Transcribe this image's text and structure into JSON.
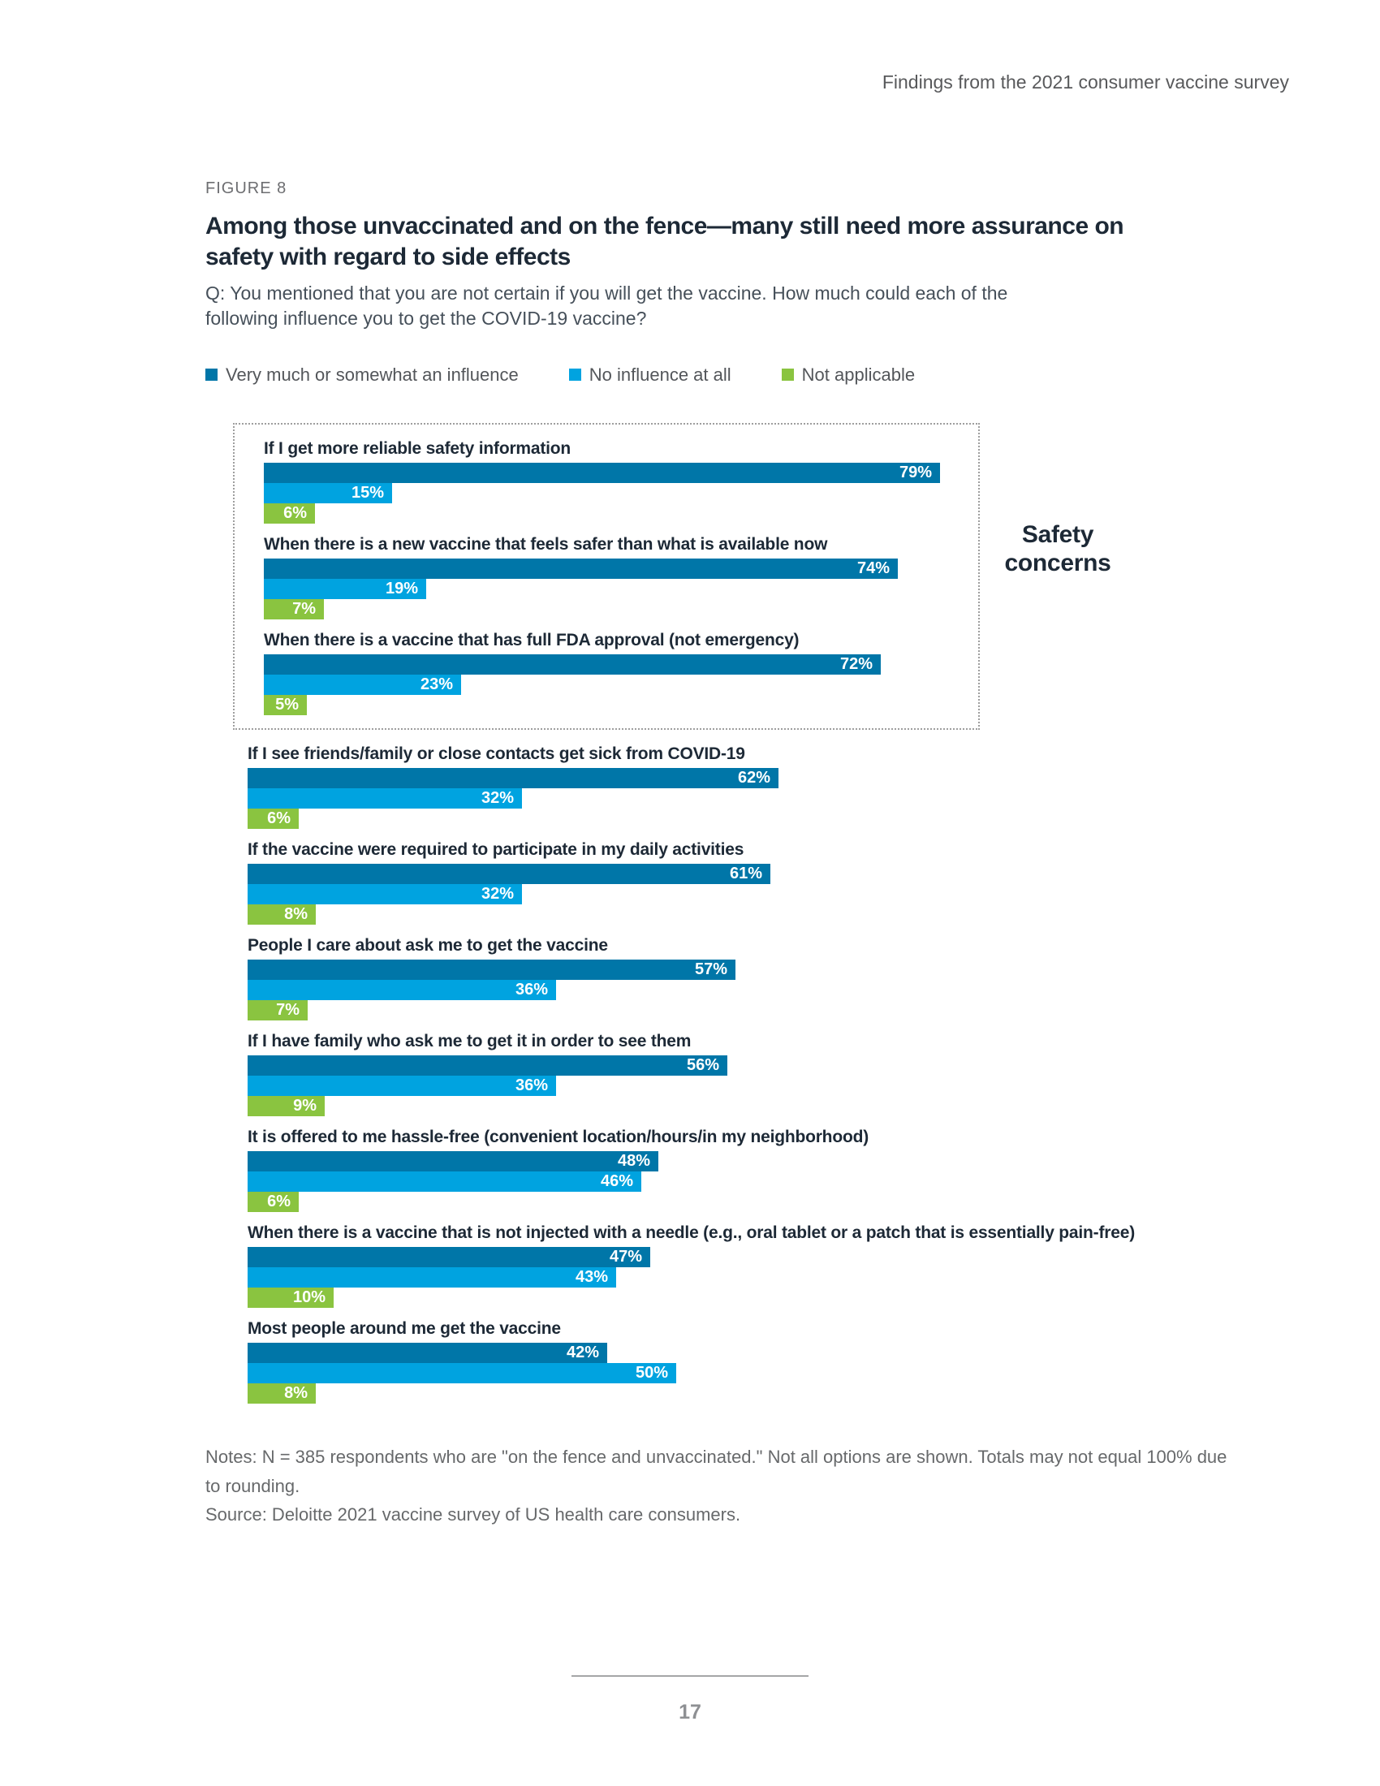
{
  "page": {
    "header": "Findings from the 2021 consumer vaccine survey",
    "page_number": "17"
  },
  "figure": {
    "eyebrow": "FIGURE 8",
    "title": "Among those unvaccinated and on the fence—many still need more assurance on safety with regard to side effects",
    "question": "Q: You mentioned that you are not certain if you will get the vaccine. How much could each of the following influence you to get the COVID-19 vaccine?",
    "legend": [
      {
        "label": "Very much or somewhat an influence",
        "color": "#0076a8"
      },
      {
        "label": "No influence at all",
        "color": "#00a3e0"
      },
      {
        "label": "Not applicable",
        "color": "#8ac440"
      }
    ],
    "notes": "Notes: N = 385 respondents who are \"on the fence and unvaccinated.\" Not all options are shown. Totals may not equal 100% due to rounding.",
    "source": "Source: Deloitte 2021 vaccine survey of US health care consumers."
  },
  "chart_data": {
    "type": "bar",
    "orientation": "horizontal",
    "value_suffix": "%",
    "xlim": [
      0,
      100
    ],
    "boxed_category_count": 3,
    "group_annotation": "Safety concerns",
    "categories": [
      "If I get more reliable safety information",
      "When there is a new vaccine that feels safer than what is available now",
      "When there is a vaccine that has full FDA approval (not emergency)",
      "If I see friends/family or close contacts get sick from COVID-19",
      "If the vaccine were required to participate in my daily activities",
      "People I care about ask me to get the vaccine",
      "If I have family who ask me to get it in order to see them",
      "It is offered to me hassle-free (convenient location/hours/in my neighborhood)",
      "When there is a vaccine that is not injected with a needle (e.g., oral tablet or a patch that is essentially pain-free)",
      "Most people around me get the vaccine"
    ],
    "series": [
      {
        "name": "Very much or somewhat an influence",
        "color": "#0076a8",
        "values": [
          79,
          74,
          72,
          62,
          61,
          57,
          56,
          48,
          47,
          42
        ]
      },
      {
        "name": "No influence at all",
        "color": "#00a3e0",
        "values": [
          15,
          19,
          23,
          32,
          32,
          36,
          36,
          46,
          43,
          50
        ]
      },
      {
        "name": "Not applicable",
        "color": "#8ac440",
        "values": [
          6,
          7,
          5,
          6,
          8,
          7,
          9,
          6,
          10,
          8
        ]
      }
    ]
  }
}
